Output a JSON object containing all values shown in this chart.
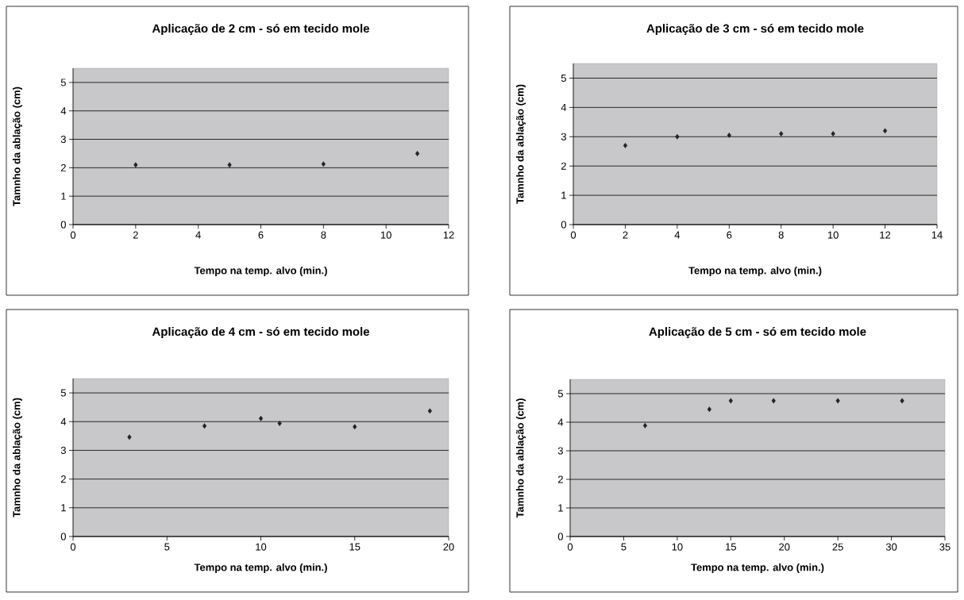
{
  "chart_data": [
    {
      "type": "scatter",
      "title": "Aplicação de 2 cm - só em tecido mole",
      "xlabel": "Tempo na temp. alvo (min.)",
      "ylabel": "Tamnho da ablação (cm)",
      "x": [
        2,
        5,
        8,
        11
      ],
      "values": [
        2.1,
        2.1,
        2.13,
        2.5
      ],
      "color": "#222222",
      "xlim": [
        0,
        12
      ],
      "ylim": [
        0,
        5.5
      ],
      "xticks": [
        0,
        2,
        4,
        6,
        8,
        10,
        12
      ],
      "yticks": [
        0,
        1,
        2,
        3,
        4,
        5
      ],
      "grid": "y",
      "marker": "diamond"
    },
    {
      "type": "scatter",
      "title": "Aplicação de 3 cm - só em tecido mole",
      "xlabel": "Tempo na temp. alvo (min.)",
      "ylabel": "Tamnho da ablação (cm)",
      "x": [
        2,
        4,
        6,
        8,
        10,
        12
      ],
      "values": [
        2.7,
        3.0,
        3.05,
        3.1,
        3.1,
        3.2
      ],
      "color": "#222222",
      "xlim": [
        0,
        14
      ],
      "ylim": [
        0,
        5.5
      ],
      "xticks": [
        0,
        2,
        4,
        6,
        8,
        10,
        12,
        14
      ],
      "yticks": [
        0,
        1,
        2,
        3,
        4,
        5
      ],
      "grid": "y",
      "marker": "diamond"
    },
    {
      "type": "scatter",
      "title": "Aplicação de 4 cm - só em tecido mole",
      "xlabel": "Tempo na temp. alvo (min.)",
      "ylabel": "Tamnho da ablação (cm)",
      "x": [
        3,
        7,
        10,
        11,
        15,
        19
      ],
      "values": [
        3.46,
        3.85,
        4.11,
        3.94,
        3.82,
        4.37
      ],
      "color": "#222222",
      "xlim": [
        0,
        20
      ],
      "ylim": [
        0,
        5.5
      ],
      "xticks": [
        0,
        5,
        10,
        15,
        20
      ],
      "yticks": [
        0,
        1,
        2,
        3,
        4,
        5
      ],
      "grid": "y",
      "marker": "diamond"
    },
    {
      "type": "scatter",
      "title": "Aplicação de 5 cm - só em tecido mole",
      "xlabel": "Tempo na temp. alvo (min.)",
      "ylabel": "Tamnho da ablação (cm)",
      "x": [
        7,
        13,
        15,
        19,
        25,
        31
      ],
      "values": [
        3.88,
        4.45,
        4.75,
        4.75,
        4.75,
        4.75
      ],
      "color": "#222222",
      "xlim": [
        0,
        35
      ],
      "ylim": [
        0,
        5.5
      ],
      "xticks": [
        0,
        5,
        10,
        15,
        20,
        25,
        30,
        35
      ],
      "yticks": [
        0,
        1,
        2,
        3,
        4,
        5
      ],
      "grid": "y",
      "marker": "diamond"
    }
  ]
}
